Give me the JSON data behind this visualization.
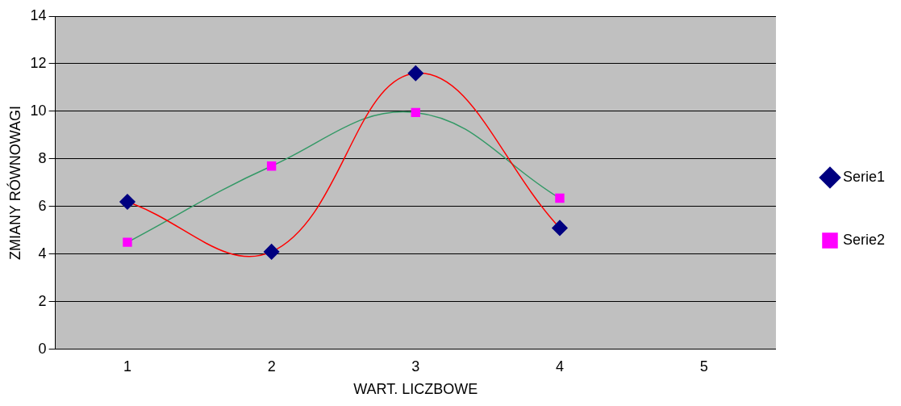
{
  "chart_data": {
    "type": "line",
    "xlabel": "WART. LICZBOWE",
    "ylabel": "ZMIANY RÓWNOWAGI",
    "categories": [
      "1",
      "2",
      "3",
      "4",
      "5"
    ],
    "series": [
      {
        "name": "Serie1",
        "color": "#ff0000",
        "colors": [
          "#000080",
          "#000080",
          "#000080",
          "#000080",
          "#000080"
        ],
        "marker": "diamond",
        "values": [
          6.2,
          4.1,
          11.6,
          5.1,
          null
        ]
      },
      {
        "name": "Serie2",
        "color": "#339966",
        "colors": [
          "#ff00ff",
          "#ff00ff",
          "#ff00ff",
          "#ff00ff",
          "#ff00ff"
        ],
        "marker": "square",
        "values": [
          4.5,
          7.7,
          9.95,
          6.35,
          null
        ]
      }
    ],
    "ylim": [
      0,
      14
    ],
    "yticks": [
      0,
      2,
      4,
      6,
      8,
      10,
      12,
      14
    ],
    "grid": "y",
    "legend": "right"
  }
}
